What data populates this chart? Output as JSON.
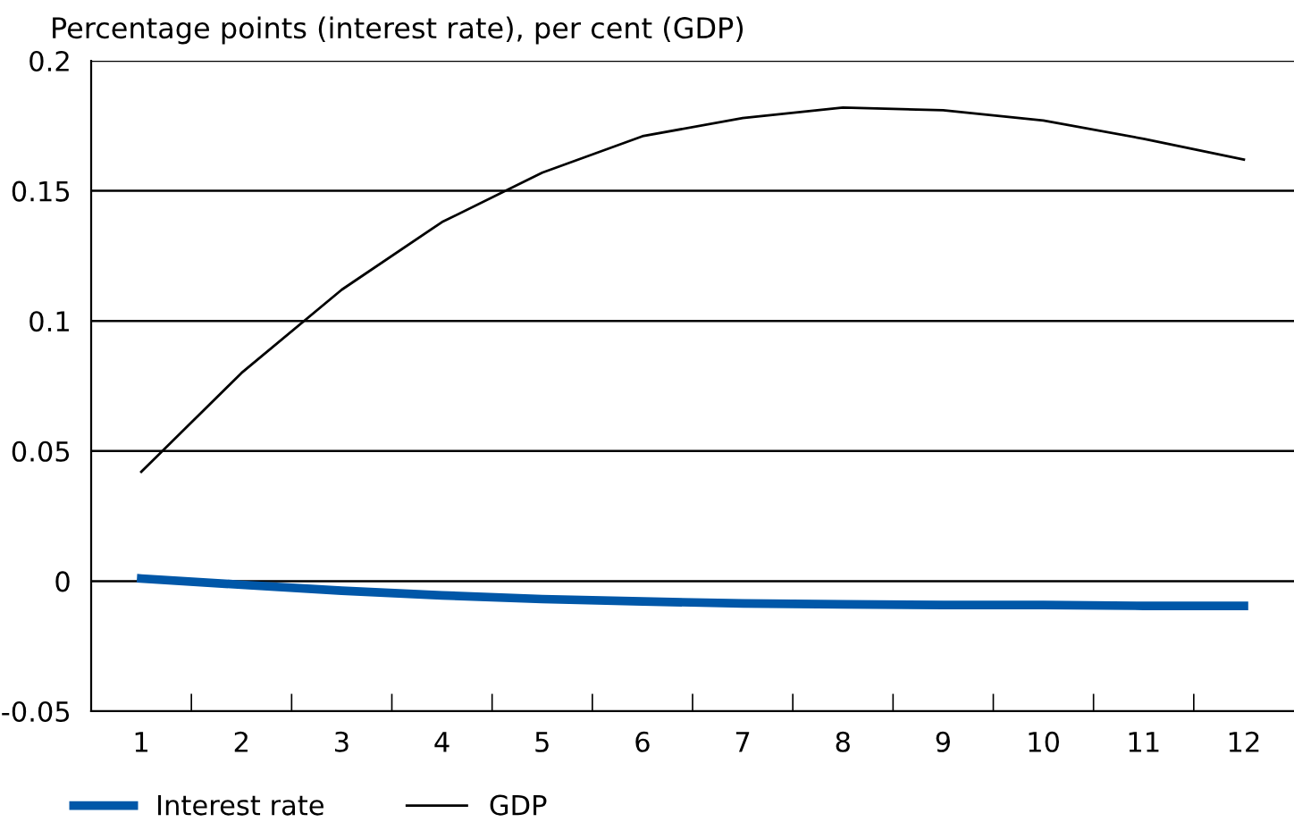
{
  "chart_data": {
    "type": "line",
    "subtitle": "Percentage points (interest rate), per cent (GDP)",
    "categories": [
      "1",
      "2",
      "3",
      "4",
      "5",
      "6",
      "7",
      "8",
      "9",
      "10",
      "11",
      "12"
    ],
    "series": [
      {
        "name": "Interest rate",
        "color": "#0057a8",
        "values": [
          0.001,
          -0.0014,
          -0.0037,
          -0.0055,
          -0.0069,
          -0.0078,
          -0.0086,
          -0.0089,
          -0.0092,
          -0.0092,
          -0.0095,
          -0.0095
        ]
      },
      {
        "name": "GDP",
        "color": "#000000",
        "values": [
          0.042,
          0.08,
          0.112,
          0.138,
          0.157,
          0.171,
          0.178,
          0.182,
          0.181,
          0.177,
          0.17,
          0.162
        ]
      }
    ],
    "ylim": [
      -0.05,
      0.2
    ],
    "yticks": [
      {
        "value": -0.05,
        "label": "-0.05"
      },
      0,
      0.05,
      0.1,
      0.15,
      0.2
    ],
    "grid": "y",
    "legend": "bottom left",
    "marker": "none",
    "line_style": "solid"
  }
}
